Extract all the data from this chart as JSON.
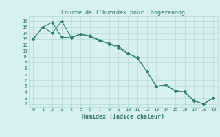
{
  "title": "Courbe de l'humidex pour Longerenong",
  "xlabel": "Humidex (Indice chaleur)",
  "line1_x": [
    0,
    1,
    2,
    3,
    4,
    5,
    6,
    7,
    8,
    9,
    10,
    11,
    12,
    13,
    14,
    15,
    16,
    17,
    18,
    19
  ],
  "line1_y": [
    13,
    15,
    14,
    16,
    13.3,
    13.8,
    13.5,
    12.8,
    12.2,
    11.5,
    10.5,
    9.8,
    7.5,
    5.0,
    5.2,
    4.2,
    4.0,
    2.5,
    2.0,
    3.0
  ],
  "line2_x": [
    0,
    1,
    2,
    3,
    4,
    5,
    6,
    7,
    8,
    9,
    10,
    11,
    12,
    13,
    14,
    15,
    16,
    17,
    18,
    19
  ],
  "line2_y": [
    13,
    15,
    15.8,
    13.3,
    13.2,
    13.8,
    13.4,
    12.7,
    12.2,
    11.8,
    10.5,
    9.8,
    7.5,
    5.0,
    5.2,
    4.2,
    4.0,
    2.5,
    2.0,
    3.0
  ],
  "line_color": "#2e7d6e",
  "bg_color": "#d8f0f0",
  "grid_color": "#b0d8d8",
  "xlim": [
    -0.5,
    19.5
  ],
  "ylim": [
    1.5,
    16.8
  ],
  "xticks": [
    0,
    1,
    2,
    3,
    4,
    5,
    6,
    7,
    8,
    9,
    10,
    11,
    12,
    13,
    14,
    15,
    16,
    17,
    18,
    19
  ],
  "yticks": [
    2,
    3,
    4,
    5,
    6,
    7,
    8,
    9,
    10,
    11,
    12,
    13,
    14,
    15,
    16
  ],
  "marker": "D",
  "markersize": 1.8,
  "linewidth": 0.8,
  "title_fontsize": 6.0,
  "label_fontsize": 6.0,
  "tick_fontsize": 5.0
}
